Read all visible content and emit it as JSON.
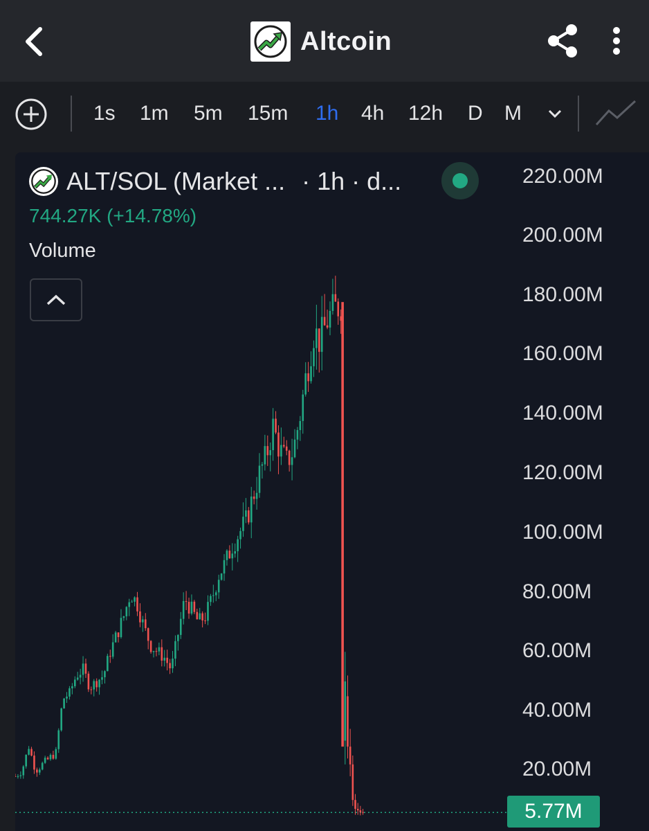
{
  "header": {
    "title": "Altcoin"
  },
  "toolbar": {
    "timeframes": [
      "1s",
      "1m",
      "5m",
      "15m",
      "1h",
      "4h",
      "12h",
      "D",
      "M"
    ],
    "active_timeframe": "1h"
  },
  "legend": {
    "pair": "ALT/SOL (Market ...",
    "interval": "· 1h · d...",
    "change": "744.27K (+14.78%)",
    "indicator": "Volume"
  },
  "colors": {
    "up": "#22a883",
    "down": "#ef5350",
    "accent": "#2f6df0",
    "background": "#131722"
  },
  "icons": [
    "back-arrow-icon",
    "logo-trend-icon",
    "share-icon",
    "more-vertical-icon",
    "add-circle-icon",
    "chevron-down-icon",
    "line-chart-icon",
    "chevron-up-icon"
  ],
  "chart_data": {
    "type": "candlestick",
    "y_ticks": [
      "220.00M",
      "200.00M",
      "180.00M",
      "160.00M",
      "140.00M",
      "120.00M",
      "100.00M",
      "80.00M",
      "60.00M",
      "40.00M",
      "20.00M"
    ],
    "ylim": [
      0,
      230
    ],
    "last_price_label": "5.77M",
    "trend_points": [
      [
        0,
        18
      ],
      [
        4,
        20
      ],
      [
        8,
        28
      ],
      [
        12,
        20
      ],
      [
        16,
        22
      ],
      [
        20,
        24
      ],
      [
        24,
        26
      ],
      [
        28,
        44
      ],
      [
        32,
        46
      ],
      [
        36,
        52
      ],
      [
        40,
        54
      ],
      [
        44,
        48
      ],
      [
        48,
        50
      ],
      [
        52,
        52
      ],
      [
        56,
        60
      ],
      [
        60,
        66
      ],
      [
        64,
        72
      ],
      [
        68,
        80
      ],
      [
        72,
        76
      ],
      [
        76,
        68
      ],
      [
        80,
        62
      ],
      [
        84,
        60
      ],
      [
        88,
        58
      ],
      [
        92,
        54
      ],
      [
        96,
        66
      ],
      [
        100,
        78
      ],
      [
        104,
        74
      ],
      [
        108,
        70
      ],
      [
        112,
        72
      ],
      [
        116,
        78
      ],
      [
        120,
        86
      ],
      [
        124,
        90
      ],
      [
        128,
        96
      ],
      [
        132,
        100
      ],
      [
        136,
        104
      ],
      [
        140,
        112
      ],
      [
        144,
        120
      ],
      [
        148,
        126
      ],
      [
        152,
        136
      ],
      [
        156,
        128
      ],
      [
        160,
        124
      ],
      [
        164,
        128
      ],
      [
        168,
        140
      ],
      [
        172,
        155
      ],
      [
        176,
        168
      ],
      [
        180,
        165
      ],
      [
        184,
        172
      ],
      [
        188,
        175
      ],
      [
        192,
        178
      ],
      [
        193,
        35
      ],
      [
        196,
        50
      ],
      [
        198,
        22
      ],
      [
        200,
        8
      ],
      [
        203,
        6
      ],
      [
        206,
        5.77
      ]
    ],
    "last_value": 5.77
  }
}
